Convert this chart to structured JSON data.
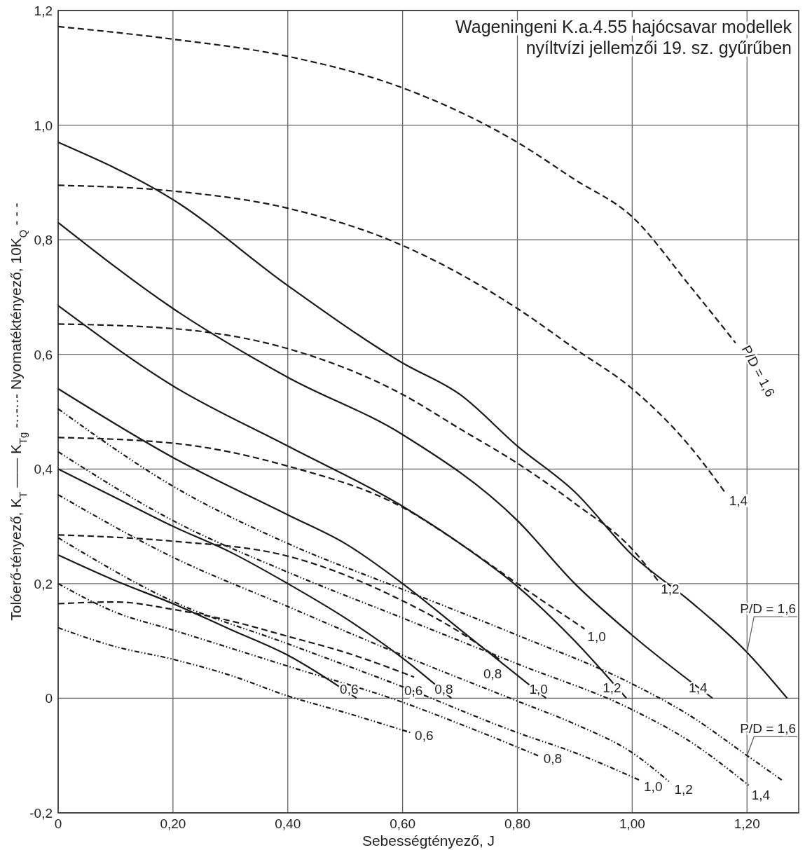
{
  "chart_data": {
    "type": "line",
    "title": "Wageningeni K.a.4.55 hajócsavar modellek",
    "subtitle": "nyíltvízi jellemzői 19. sz. gyűrűben",
    "xlabel": "Sebességtényező, J",
    "ylabel": "Tolóerő-tényező, K$_{T}$ ——    K$_{Tg}$ -··-··-    Nyomatéktényező, 10K$_{Q}$ - - -",
    "xlim": [
      0,
      1.29
    ],
    "ylim": [
      -0.2,
      1.2
    ],
    "xticks": [
      0,
      {
        "value": 0.2,
        "label": "0,20"
      },
      {
        "value": 0.4,
        "label": "0,40"
      },
      {
        "value": 0.6,
        "label": "0,60"
      },
      {
        "value": 0.8,
        "label": "0,80"
      },
      {
        "value": 1.0,
        "label": "1,00"
      },
      {
        "value": 1.2,
        "label": "1,20"
      }
    ],
    "yticks": [
      {
        "value": -0.2,
        "label": "-0,2"
      },
      0,
      {
        "value": 0.2,
        "label": "0,2"
      },
      {
        "value": 0.4,
        "label": "0,4"
      },
      {
        "value": 0.6,
        "label": "0,6"
      },
      {
        "value": 0.8,
        "label": "0,8"
      },
      {
        "value": 1.0,
        "label": "1,0"
      },
      {
        "value": 1.2,
        "label": "1,2"
      }
    ],
    "grid": true,
    "series": [
      {
        "color": "#1a1a1a",
        "line_style": "solid",
        "x": [
          0,
          0.1,
          0.2,
          0.3,
          0.4,
          0.52
        ],
        "values": [
          0.25,
          0.205,
          0.165,
          0.12,
          0.075,
          0
        ]
      },
      {
        "color": "#1a1a1a",
        "line_style": "solid",
        "x": [
          0,
          0.1,
          0.2,
          0.3,
          0.4,
          0.5,
          0.6,
          0.685
        ],
        "values": [
          0.4,
          0.35,
          0.3,
          0.255,
          0.2,
          0.14,
          0.07,
          0
        ]
      },
      {
        "color": "#1a1a1a",
        "line_style": "solid",
        "x": [
          0,
          0.2,
          0.4,
          0.5,
          0.6,
          0.7,
          0.85
        ],
        "values": [
          0.54,
          0.42,
          0.32,
          0.27,
          0.2,
          0.12,
          0
        ]
      },
      {
        "color": "#1a1a1a",
        "line_style": "solid",
        "x": [
          0,
          0.2,
          0.4,
          0.6,
          0.7,
          0.8,
          0.9,
          0.99
        ],
        "values": [
          0.685,
          0.545,
          0.44,
          0.335,
          0.27,
          0.195,
          0.1,
          0
        ]
      },
      {
        "color": "#1a1a1a",
        "line_style": "solid",
        "x": [
          0,
          0.2,
          0.4,
          0.6,
          0.8,
          0.9,
          1.0,
          1.14
        ],
        "values": [
          0.83,
          0.68,
          0.56,
          0.46,
          0.31,
          0.2,
          0.11,
          0
        ]
      },
      {
        "color": "#1a1a1a",
        "line_style": "solid",
        "x": [
          0,
          0.2,
          0.4,
          0.6,
          0.7,
          0.8,
          0.9,
          1.0,
          1.1,
          1.2,
          1.27
        ],
        "values": [
          0.97,
          0.87,
          0.72,
          0.585,
          0.53,
          0.44,
          0.36,
          0.25,
          0.17,
          0.08,
          0
        ]
      },
      {
        "color": "#1a1a1a",
        "line_style": "dashed",
        "x": [
          0,
          0.1,
          0.2,
          0.3,
          0.4,
          0.5,
          0.62
        ],
        "values": [
          0.165,
          0.168,
          0.155,
          0.135,
          0.108,
          0.08,
          0.037
        ]
      },
      {
        "color": "#1a1a1a",
        "line_style": "dashed",
        "x": [
          0,
          0.2,
          0.4,
          0.6,
          0.7,
          0.77
        ],
        "values": [
          0.285,
          0.274,
          0.248,
          0.17,
          0.115,
          0.067
        ]
      },
      {
        "color": "#1a1a1a",
        "line_style": "dashed",
        "x": [
          0,
          0.2,
          0.4,
          0.6,
          0.7,
          0.8,
          0.917
        ],
        "values": [
          0.455,
          0.445,
          0.405,
          0.333,
          0.27,
          0.2,
          0.121
        ]
      },
      {
        "color": "#1a1a1a",
        "line_style": "dashed",
        "x": [
          0,
          0.2,
          0.4,
          0.6,
          0.7,
          0.8,
          0.9,
          1.0,
          1.045
        ],
        "values": [
          0.653,
          0.645,
          0.61,
          0.53,
          0.47,
          0.41,
          0.34,
          0.26,
          0.205
        ]
      },
      {
        "color": "#1a1a1a",
        "line_style": "dashed",
        "x": [
          0,
          0.2,
          0.4,
          0.6,
          0.8,
          0.9,
          1.0,
          1.1,
          1.164
        ],
        "values": [
          0.895,
          0.885,
          0.855,
          0.79,
          0.68,
          0.61,
          0.54,
          0.44,
          0.356
        ]
      },
      {
        "color": "#1a1a1a",
        "line_style": "dashed",
        "x": [
          0,
          0.2,
          0.4,
          0.6,
          0.8,
          0.9,
          1.0,
          1.1,
          1.18
        ],
        "values": [
          1.172,
          1.15,
          1.12,
          1.065,
          0.97,
          0.905,
          0.84,
          0.72,
          0.62
        ]
      },
      {
        "color": "#1a1a1a",
        "line_style": "dashdot",
        "x": [
          0,
          0.1,
          0.2,
          0.3,
          0.4,
          0.5,
          0.614
        ],
        "values": [
          0.123,
          0.09,
          0.068,
          0.04,
          0.004,
          -0.025,
          -0.06
        ]
      },
      {
        "color": "#1a1a1a",
        "line_style": "dashdot",
        "x": [
          0,
          0.1,
          0.2,
          0.4,
          0.6,
          0.7,
          0.838
        ],
        "values": [
          0.2,
          0.15,
          0.119,
          0.056,
          -0.007,
          -0.045,
          -0.101
        ]
      },
      {
        "color": "#1a1a1a",
        "line_style": "dashdot",
        "x": [
          0,
          0.2,
          0.4,
          0.6,
          0.8,
          0.9,
          1.013
        ],
        "values": [
          0.28,
          0.169,
          0.095,
          0.02,
          -0.06,
          -0.095,
          -0.143
        ]
      },
      {
        "color": "#1a1a1a",
        "line_style": "dashdot",
        "x": [
          0,
          0.2,
          0.4,
          0.6,
          0.8,
          0.9,
          1.0,
          1.066
        ],
        "values": [
          0.355,
          0.246,
          0.16,
          0.075,
          -0.005,
          -0.045,
          -0.095,
          -0.147
        ]
      },
      {
        "color": "#1a1a1a",
        "line_style": "dashdot",
        "x": [
          0,
          0.2,
          0.4,
          0.6,
          0.8,
          1.0,
          1.1,
          1.203
        ],
        "values": [
          0.43,
          0.31,
          0.22,
          0.14,
          0.06,
          -0.02,
          -0.075,
          -0.152
        ]
      },
      {
        "color": "#1a1a1a",
        "line_style": "dashdot",
        "x": [
          0,
          0.2,
          0.4,
          0.6,
          0.8,
          1.0,
          1.1,
          1.2,
          1.261
        ],
        "values": [
          0.505,
          0.37,
          0.27,
          0.19,
          0.11,
          0.025,
          -0.03,
          -0.1,
          -0.143
        ]
      }
    ],
    "annotations": [
      {
        "text": "0,6",
        "x": 0.52,
        "y": 0
      },
      {
        "text": "0,8",
        "x": 0.685,
        "y": 0
      },
      {
        "text": "1,0",
        "x": 0.85,
        "y": 0
      },
      {
        "text": "1,2",
        "x": 0.99,
        "y": 0
      },
      {
        "text": "1,4",
        "x": 1.14,
        "y": 0
      },
      {
        "text": "P/D = 1,6",
        "x": 1.2,
        "y": 0.08
      },
      {
        "text": "0,6",
        "x": 0.62,
        "y": 0.037
      },
      {
        "text": "0,8",
        "x": 0.77,
        "y": 0.067
      },
      {
        "text": "1,0",
        "x": 0.917,
        "y": 0.121
      },
      {
        "text": "1,2",
        "x": 1.045,
        "y": 0.205
      },
      {
        "text": "1,4",
        "x": 1.164,
        "y": 0.356
      },
      {
        "text": "P/D = 1,6",
        "x": 1.18,
        "y": 0.62
      },
      {
        "text": "0,6",
        "x": 0.614,
        "y": -0.06
      },
      {
        "text": "0,8",
        "x": 0.838,
        "y": -0.101
      },
      {
        "text": "1,0",
        "x": 1.013,
        "y": -0.143
      },
      {
        "text": "1,2",
        "x": 1.066,
        "y": -0.147
      },
      {
        "text": "1,4",
        "x": 1.203,
        "y": -0.152
      },
      {
        "text": "P/D = 1,6",
        "x": 1.2,
        "y": -0.1
      }
    ]
  }
}
